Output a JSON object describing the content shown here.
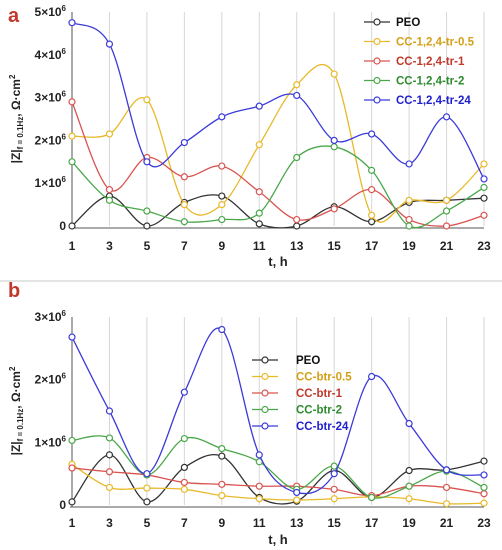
{
  "figure": {
    "separator_color": "#c8c8c8"
  },
  "chart_data": [
    {
      "type": "line",
      "panel_label": "a",
      "xlabel": "t, h",
      "ylabel": "|Z|f = 0.1Hz, Ω·cm²",
      "ylabel_parts": {
        "main": "|Z|",
        "sub": "f = 0.1Hz",
        "unit": ", Ω·cm",
        "sup": "2"
      },
      "x": [
        1,
        3,
        5,
        7,
        9,
        11,
        13,
        15,
        17,
        19,
        21,
        23
      ],
      "xlim": [
        1,
        23
      ],
      "xticks": [
        "1",
        "3",
        "5",
        "7",
        "9",
        "11",
        "13",
        "15",
        "17",
        "19",
        "21",
        "23"
      ],
      "ylim": [
        0,
        5000000
      ],
      "yticks": [
        {
          "value": 0,
          "base": "0",
          "exp": ""
        },
        {
          "value": 1000000,
          "base": "1×10",
          "exp": "6"
        },
        {
          "value": 2000000,
          "base": "2×10",
          "exp": "6"
        },
        {
          "value": 3000000,
          "base": "3×10",
          "exp": "6"
        },
        {
          "value": 4000000,
          "base": "4×10",
          "exp": "6"
        },
        {
          "value": 5000000,
          "base": "5×10",
          "exp": "6"
        }
      ],
      "grid": "vertical",
      "legend_position": "top-right",
      "series": [
        {
          "name": "PEO",
          "color": "#333333",
          "label_color": "#111111",
          "values": [
            0,
            700000,
            0,
            550000,
            700000,
            50000,
            0,
            450000,
            100000,
            550000,
            600000,
            650000
          ]
        },
        {
          "name": "CC-1,2,4-tr-0.5",
          "color": "#e8b92a",
          "label_color": "#d4a017",
          "values": [
            2100000,
            2150000,
            2950000,
            500000,
            500000,
            1900000,
            3300000,
            3550000,
            250000,
            600000,
            600000,
            1450000
          ]
        },
        {
          "name": "CC-1,2,4-tr-1",
          "color": "#d9534f",
          "label_color": "#c0392b",
          "values": [
            2900000,
            850000,
            1600000,
            1150000,
            1400000,
            800000,
            150000,
            400000,
            850000,
            150000,
            0,
            250000
          ]
        },
        {
          "name": "CC-1,2,4-tr-2",
          "color": "#4aa84a",
          "label_color": "#2e8b2e",
          "values": [
            1500000,
            600000,
            350000,
            100000,
            150000,
            300000,
            1600000,
            1850000,
            1300000,
            0,
            350000,
            900000
          ]
        },
        {
          "name": "CC-1,2,4-tr-24",
          "color": "#3b3bd9",
          "label_color": "#1f1fd0",
          "values": [
            4750000,
            4250000,
            1500000,
            1950000,
            2550000,
            2800000,
            3050000,
            2000000,
            2150000,
            1450000,
            2550000,
            1100000
          ]
        }
      ]
    },
    {
      "type": "line",
      "panel_label": "b",
      "xlabel": "t, h",
      "ylabel": "|Z|f = 0.1Hz, Ω·cm²",
      "ylabel_parts": {
        "main": "|Z|",
        "sub": "f = 0.1Hz",
        "unit": ", Ω·cm",
        "sup": "2"
      },
      "x": [
        1,
        3,
        5,
        7,
        9,
        11,
        13,
        15,
        17,
        19,
        21,
        23
      ],
      "xlim": [
        1,
        23
      ],
      "xticks": [
        "1",
        "3",
        "5",
        "7",
        "9",
        "11",
        "13",
        "15",
        "17",
        "19",
        "21",
        "23"
      ],
      "ylim": [
        0,
        3000000
      ],
      "yticks": [
        {
          "value": 0,
          "base": "0",
          "exp": ""
        },
        {
          "value": 1000000,
          "base": "1×10",
          "exp": "6"
        },
        {
          "value": 2000000,
          "base": "2×10",
          "exp": "6"
        },
        {
          "value": 3000000,
          "base": "3×10",
          "exp": "6"
        }
      ],
      "grid": "vertical",
      "legend_position": "top-center",
      "series": [
        {
          "name": "PEO",
          "color": "#333333",
          "label_color": "#111111",
          "values": [
            50000,
            800000,
            50000,
            600000,
            780000,
            120000,
            60000,
            550000,
            120000,
            550000,
            560000,
            700000
          ]
        },
        {
          "name": "CC-btr-0.5",
          "color": "#e8b92a",
          "label_color": "#d4a017",
          "values": [
            650000,
            280000,
            270000,
            250000,
            150000,
            100000,
            80000,
            100000,
            130000,
            100000,
            20000,
            30000
          ]
        },
        {
          "name": "CC-btr-1",
          "color": "#d9534f",
          "label_color": "#c0392b",
          "values": [
            590000,
            530000,
            480000,
            360000,
            330000,
            300000,
            300000,
            250000,
            150000,
            300000,
            280000,
            180000
          ]
        },
        {
          "name": "CC-btr-2",
          "color": "#4aa84a",
          "label_color": "#2e8b2e",
          "values": [
            1030000,
            1070000,
            480000,
            1060000,
            900000,
            690000,
            250000,
            620000,
            120000,
            300000,
            540000,
            280000
          ]
        },
        {
          "name": "CC-btr-24",
          "color": "#3b3bd9",
          "label_color": "#1f1fd0",
          "values": [
            2680000,
            1500000,
            500000,
            1800000,
            2800000,
            800000,
            200000,
            500000,
            2050000,
            1300000,
            560000,
            480000
          ]
        }
      ]
    }
  ]
}
